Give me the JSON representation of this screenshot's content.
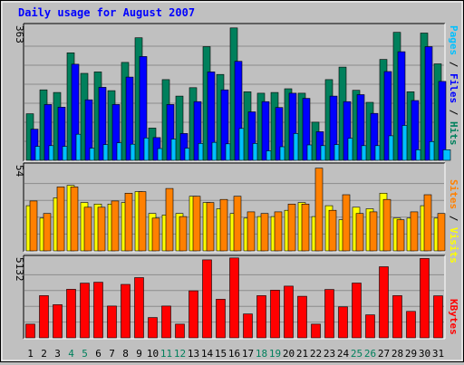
{
  "chart_data": {
    "type": "bar",
    "title": "Daily usage for August 2007",
    "colors": {
      "hits": "#00805c",
      "files": "#0000ff",
      "pages": "#00c0ff",
      "visits": "#ffff00",
      "sites": "#ff8000",
      "kbytes": "#ff0000",
      "weekend": "#00805c",
      "weekday": "#000000",
      "title": "#0000ff",
      "panel": "#c0c0c0",
      "grid": "#8c8c8c"
    },
    "days": [
      "1",
      "2",
      "3",
      "4",
      "5",
      "6",
      "7",
      "8",
      "9",
      "10",
      "11",
      "12",
      "13",
      "14",
      "15",
      "16",
      "17",
      "18",
      "19",
      "20",
      "21",
      "22",
      "23",
      "24",
      "25",
      "26",
      "27",
      "28",
      "29",
      "30",
      "31"
    ],
    "weekend_days": [
      "4",
      "5",
      "11",
      "12",
      "18",
      "19",
      "25",
      "26"
    ],
    "panels": [
      {
        "scale_label": "363",
        "ymax": 363,
        "legend": [
          {
            "text": "Pages",
            "color": "#00c0ff"
          },
          {
            "text": " / ",
            "color": "#000000"
          },
          {
            "text": "Files",
            "color": "#0000ff"
          },
          {
            "text": " / ",
            "color": "#000000"
          },
          {
            "text": "Hits",
            "color": "#00805c"
          }
        ],
        "series": [
          {
            "name": "Hits",
            "color": "#00805c",
            "values": [
              127,
              192,
              185,
              293,
              237,
              241,
              190,
              267,
              334,
              88,
              220,
              175,
              198,
              310,
              234,
              361,
              187,
              183,
              185,
              195,
              183,
              104,
              220,
              254,
              191,
              158,
              275,
              349,
              187,
              347,
              263
            ]
          },
          {
            "name": "Files",
            "color": "#0000ff",
            "values": [
              85,
              152,
              145,
              262,
              165,
              199,
              152,
              227,
              283,
              62,
              152,
              73,
              160,
              241,
              192,
              270,
              132,
              160,
              144,
              183,
              169,
              78,
              175,
              160,
              179,
              128,
              242,
              296,
              163,
              310,
              215
            ]
          },
          {
            "name": "Pages",
            "color": "#00c0ff",
            "values": [
              38,
              40,
              38,
              71,
              33,
              43,
              48,
              44,
              61,
              32,
              58,
              33,
              46,
              49,
              45,
              87,
              46,
              26,
              37,
              73,
              42,
              40,
              43,
              60,
              40,
              40,
              67,
              95,
              29,
              51,
              29
            ]
          }
        ]
      },
      {
        "scale_label": "54",
        "ymax": 54,
        "legend": [
          {
            "text": "Sites",
            "color": "#ff8000"
          },
          {
            "text": " / ",
            "color": "#000000"
          },
          {
            "text": "Visits",
            "color": "#ffff00"
          }
        ],
        "series": [
          {
            "name": "Visits",
            "color": "#ffff00",
            "values": [
              29,
              21,
              34,
              42,
              31,
              30,
              30,
              31,
              38,
              24,
              23,
              24,
              35,
              31,
              27,
              24,
              21,
              22,
              22,
              26,
              31,
              22,
              29,
              20,
              28,
              27,
              37,
              21,
              21,
              29,
              21
            ]
          },
          {
            "name": "Sites",
            "color": "#ff8000",
            "values": [
              32,
              24,
              41,
              41,
              28,
              28,
              32,
              37,
              38,
              21,
              40,
              22,
              35,
              31,
              33,
              35,
              25,
              24,
              25,
              30,
              30,
              53,
              26,
              36,
              24,
              25,
              33,
              20,
              25,
              36,
              24
            ]
          }
        ]
      },
      {
        "scale_label": "5132",
        "ymax": 5132,
        "legend": [
          {
            "text": "KBytes",
            "color": "#ff0000"
          }
        ],
        "series": [
          {
            "name": "KBytes",
            "color": "#ff0000",
            "values": [
              890,
              2750,
              2160,
              3160,
              3560,
              3620,
              2070,
              3480,
              3920,
              1320,
              2070,
              890,
              3060,
              5080,
              2510,
              5200,
              1560,
              2750,
              3100,
              3370,
              2710,
              890,
              3150,
              2020,
              3570,
              1500,
              4630,
              2750,
              1720,
              5170,
              2740
            ]
          }
        ]
      }
    ]
  }
}
